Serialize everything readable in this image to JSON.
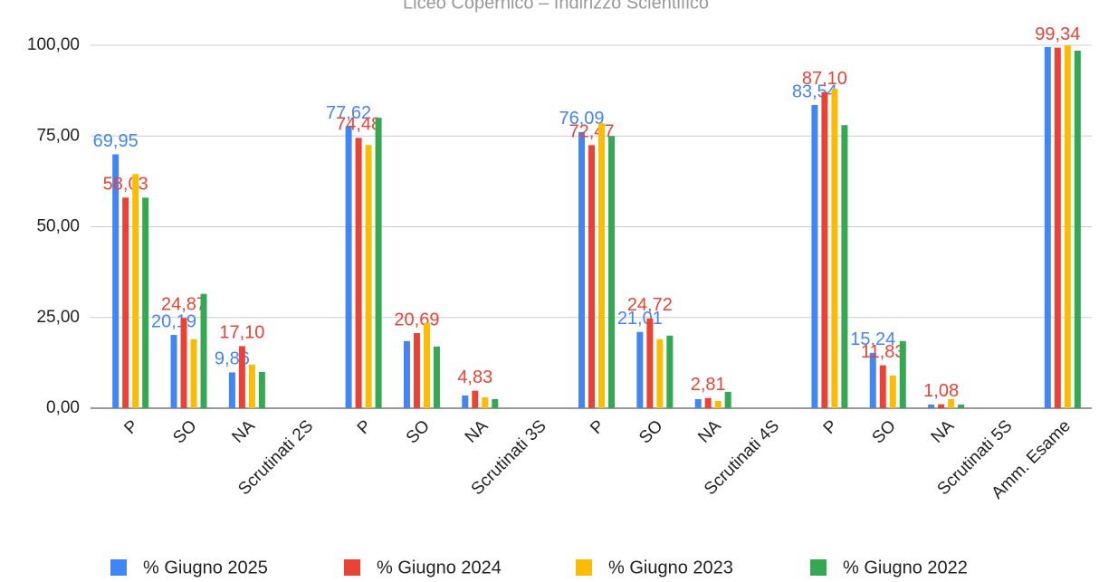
{
  "chart_data": {
    "type": "bar",
    "title": "Liceo Copernico – Indirizzo Scientifico",
    "categories": [
      "P",
      "SO",
      "NA",
      "Scrutinati 2S",
      "P",
      "SO",
      "NA",
      "Scrutinati 3S",
      "P",
      "SO",
      "NA",
      "Scrutinati 4S",
      "P",
      "SO",
      "NA",
      "Scrutinati 5S",
      "Amm. Esame"
    ],
    "series": [
      {
        "name": "% Giugno 2025",
        "color": "#4285f4",
        "values": [
          69.95,
          20.19,
          9.86,
          null,
          77.62,
          18.5,
          3.5,
          null,
          76.09,
          21.01,
          2.5,
          null,
          83.54,
          15.24,
          1,
          null,
          99.5
        ],
        "value_labels": [
          "69,95",
          "20,19",
          "9,86",
          null,
          "77,62",
          null,
          null,
          null,
          "76,09",
          "21,01",
          null,
          null,
          "83,54",
          "15,24",
          null,
          null,
          null
        ]
      },
      {
        "name": "% Giugno 2024",
        "color": "#ea4335",
        "values": [
          58.03,
          24.87,
          17.1,
          null,
          74.48,
          20.69,
          4.83,
          null,
          72.47,
          24.72,
          2.81,
          null,
          87.1,
          11.83,
          1.08,
          null,
          99.34
        ],
        "value_labels": [
          "58,03",
          "24,87",
          "17,10",
          null,
          "74,48",
          "20,69",
          "4,83",
          null,
          "72,47",
          "24,72",
          "2,81",
          null,
          "87,10",
          "11,83",
          "1,08",
          null,
          "99,34"
        ]
      },
      {
        "name": "% Giugno 2023",
        "color": "#fbbc04",
        "values": [
          64.5,
          19,
          12,
          null,
          72.5,
          23.5,
          3,
          null,
          78.5,
          19,
          2,
          null,
          88,
          9,
          2.5,
          null,
          100
        ]
      },
      {
        "name": "% Giugno 2022",
        "color": "#34a853",
        "values": [
          58,
          31.5,
          10,
          null,
          80,
          17,
          2.5,
          null,
          75,
          20,
          4.5,
          null,
          78,
          18.5,
          1,
          null,
          98.5
        ]
      }
    ],
    "ylim": [
      0,
      100
    ],
    "yticks": [
      {
        "value": 0,
        "label": "0,00"
      },
      {
        "value": 25,
        "label": "25,00"
      },
      {
        "value": 50,
        "label": "50,00"
      },
      {
        "value": 75,
        "label": "75,00"
      },
      {
        "value": 100,
        "label": "100,00"
      }
    ],
    "grid": true,
    "legend": "bottom"
  }
}
